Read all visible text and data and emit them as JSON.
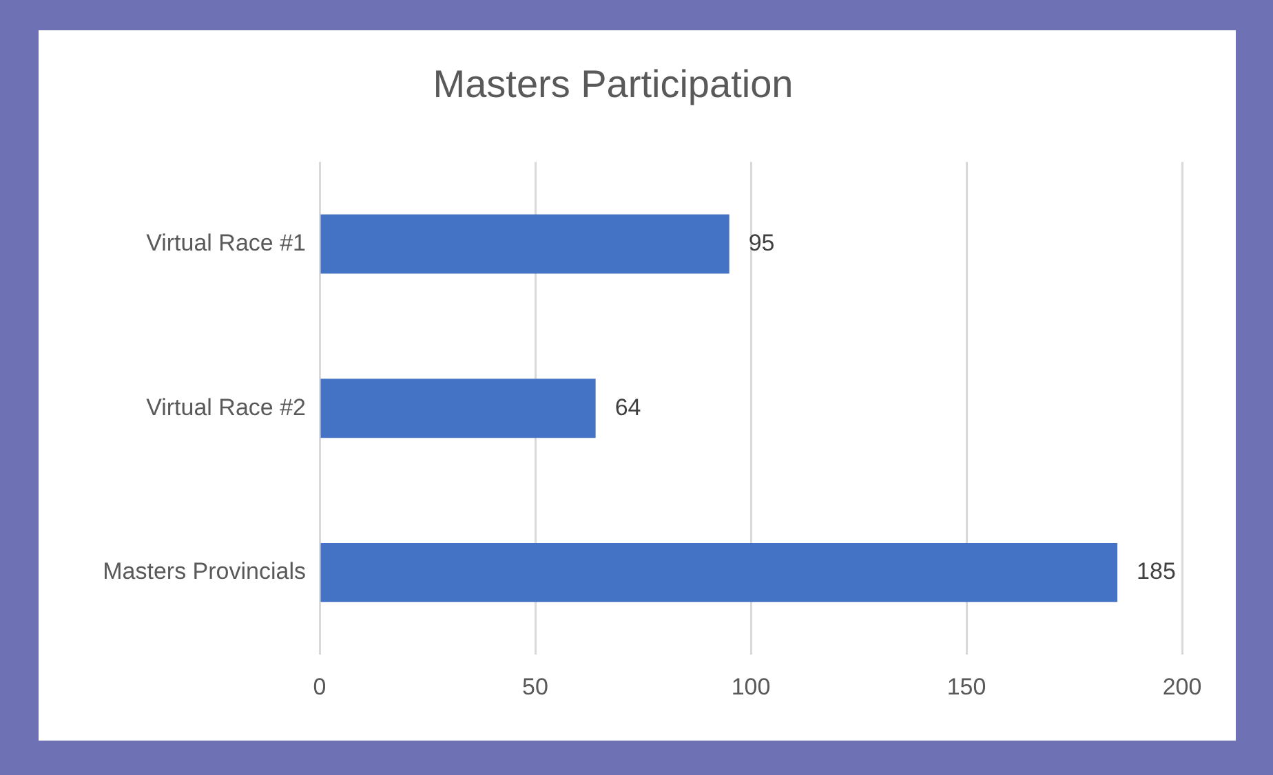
{
  "chart_data": {
    "type": "bar",
    "orientation": "horizontal",
    "title": "Masters Participation",
    "categories": [
      "Virtual Race #1",
      "Virtual Race #2",
      "Masters Provincials"
    ],
    "values": [
      95,
      64,
      185
    ],
    "color": "#4472c4",
    "xlim": [
      0,
      200
    ],
    "xticks": [
      0,
      50,
      100,
      150,
      200
    ],
    "grid": "x",
    "data_labels": true
  }
}
